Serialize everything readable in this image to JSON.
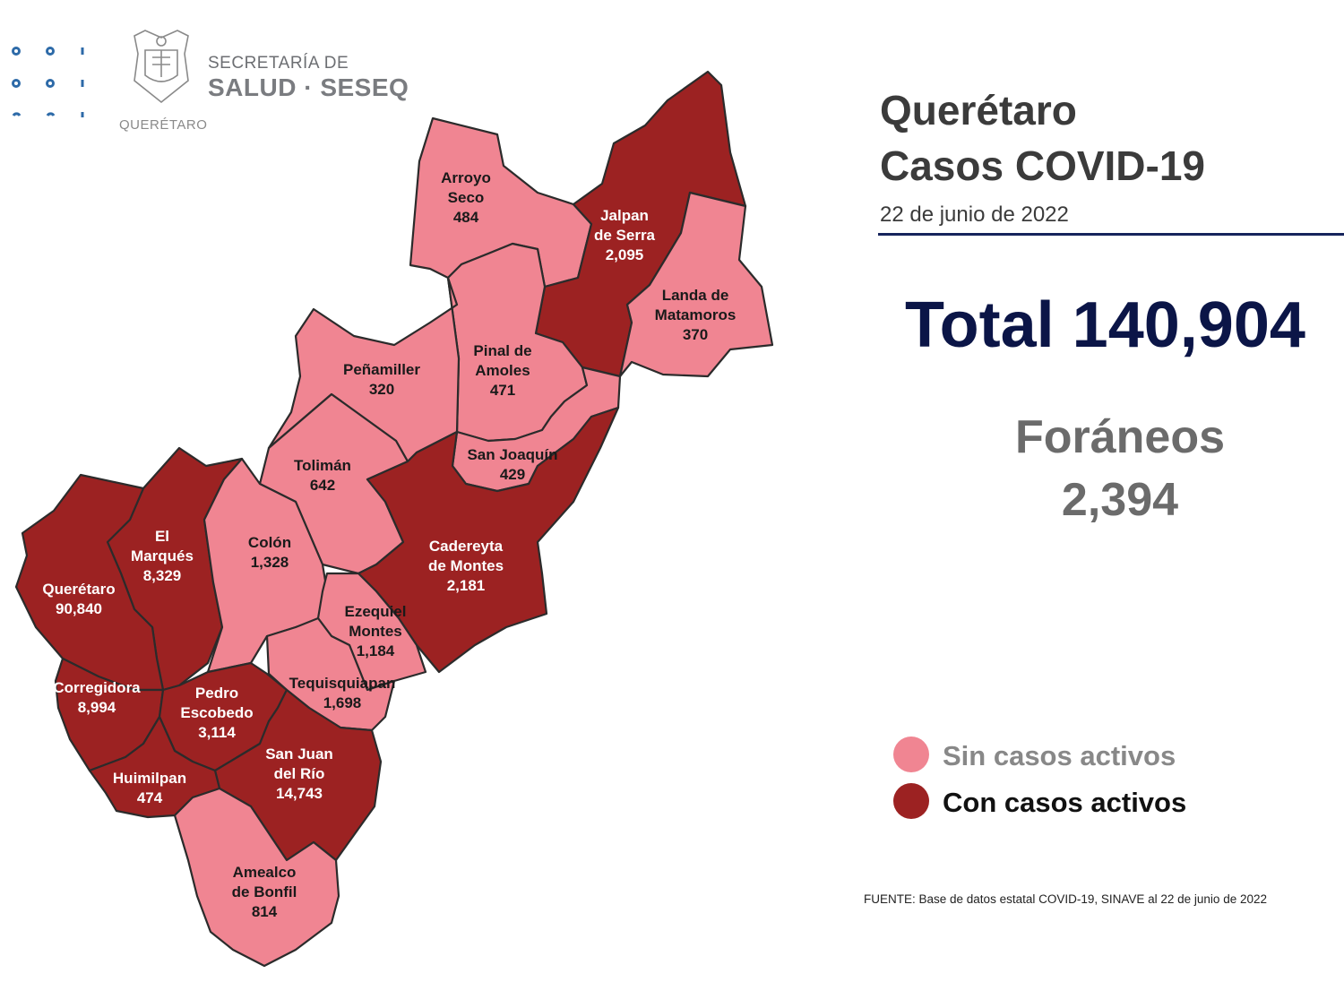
{
  "header": {
    "org_line1": "SECRETARÍA DE",
    "org_line2": "SALUD · SESEQ",
    "state_name": "QUERÉTARO"
  },
  "title": {
    "line1": "Querétaro",
    "line2": "Casos COVID-19"
  },
  "date": "22 de junio de 2022",
  "total": "Total 140,904",
  "foraneos": {
    "label": "Foráneos",
    "value": "2,394"
  },
  "legend": {
    "inactive_label": "Sin casos activos",
    "active_label": "Con casos activos",
    "inactive_color": "#f08592",
    "active_color": "#9c2222"
  },
  "colors": {
    "active": "#9c2222",
    "inactive": "#f08592",
    "border": "#2b2b2b"
  },
  "source": "FUENTE: Base de datos estatal COVID-19, SINAVE al 22 de junio de 2022",
  "municipalities": [
    {
      "id": "arroyo-seco",
      "lines": [
        "Arroyo",
        "Seco",
        "484"
      ],
      "active": false
    },
    {
      "id": "jalpan",
      "lines": [
        "Jalpan",
        "de Serra",
        "2,095"
      ],
      "active": true
    },
    {
      "id": "landa",
      "lines": [
        "Landa de",
        "Matamoros",
        "370"
      ],
      "active": false
    },
    {
      "id": "pinal",
      "lines": [
        "Pinal de",
        "Amoles",
        "471"
      ],
      "active": false
    },
    {
      "id": "penamiller",
      "lines": [
        "Peñamiller",
        "320"
      ],
      "active": false
    },
    {
      "id": "san-joaquin",
      "lines": [
        "San Joaquín",
        "429"
      ],
      "active": false
    },
    {
      "id": "toliman",
      "lines": [
        "Tolimán",
        "642"
      ],
      "active": false
    },
    {
      "id": "cadereyta",
      "lines": [
        "Cadereyta",
        "de Montes",
        "2,181"
      ],
      "active": true
    },
    {
      "id": "el-marques",
      "lines": [
        "El",
        "Marqués",
        "8,329"
      ],
      "active": true
    },
    {
      "id": "colon",
      "lines": [
        "Colón",
        "1,328"
      ],
      "active": false
    },
    {
      "id": "queretaro",
      "lines": [
        "Querétaro",
        "90,840"
      ],
      "active": true
    },
    {
      "id": "ezequiel",
      "lines": [
        "Ezequiel",
        "Montes",
        "1,184"
      ],
      "active": false
    },
    {
      "id": "tequisquiapan",
      "lines": [
        "Tequisquiapan",
        "1,698"
      ],
      "active": false
    },
    {
      "id": "corregidora",
      "lines": [
        "Corregidora",
        "8,994"
      ],
      "active": true
    },
    {
      "id": "pedro-escobedo",
      "lines": [
        "Pedro",
        "Escobedo",
        "3,114"
      ],
      "active": true
    },
    {
      "id": "san-juan",
      "lines": [
        "San Juan",
        "del Río",
        "14,743"
      ],
      "active": true
    },
    {
      "id": "huimilpan",
      "lines": [
        "Huimilpan",
        "474"
      ],
      "active": true
    },
    {
      "id": "amealco",
      "lines": [
        "Amealco",
        "de Bonfil",
        "814"
      ],
      "active": false
    }
  ]
}
